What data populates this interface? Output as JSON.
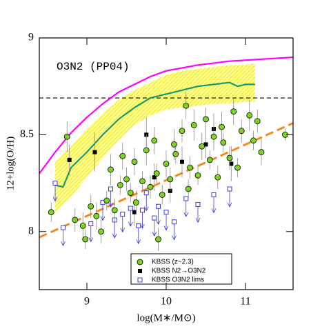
{
  "chart_data": {
    "type": "scatter",
    "annotation": "O3N2 (PP04)",
    "xlabel": "log(M∗/M⊙)",
    "ylabel": "12+log(O/H)",
    "xlim": [
      8.4,
      11.6
    ],
    "ylim": [
      7.7,
      9.0
    ],
    "xticks": [
      9,
      10,
      11
    ],
    "yticks": [
      8,
      8.5,
      9
    ],
    "legend": "lower center",
    "band": {
      "color": "#f5e900",
      "x": [
        8.6,
        8.8,
        9.0,
        9.2,
        9.4,
        9.6,
        9.8,
        10.0,
        10.2,
        10.4,
        10.6,
        10.8,
        11.0,
        11.12
      ],
      "lower": [
        8.1,
        8.18,
        8.28,
        8.38,
        8.47,
        8.55,
        8.6,
        8.63,
        8.64,
        8.65,
        8.66,
        8.66,
        8.67,
        8.67
      ],
      "upper": [
        8.36,
        8.44,
        8.53,
        8.61,
        8.68,
        8.73,
        8.77,
        8.81,
        8.83,
        8.84,
        8.85,
        8.86,
        8.86,
        8.87
      ]
    },
    "hline": {
      "value": 8.69,
      "color": "#000000"
    },
    "lines": [
      {
        "color": "#ff00ff",
        "dash": false,
        "x": [
          8.4,
          8.6,
          8.8,
          9.0,
          9.2,
          9.4,
          9.6,
          9.8,
          10.0,
          10.4,
          10.8,
          11.2,
          11.6
        ],
        "values": [
          8.3,
          8.41,
          8.51,
          8.59,
          8.66,
          8.72,
          8.76,
          8.8,
          8.83,
          8.86,
          8.88,
          8.89,
          8.9
        ]
      },
      {
        "color": "#1a9a6a",
        "dash": false,
        "x": [
          8.6,
          8.7,
          8.8,
          9.0,
          9.2,
          9.4,
          9.6,
          9.8,
          10.0,
          10.2,
          10.4,
          10.6,
          10.8,
          10.9,
          11.0,
          11.12
        ],
        "values": [
          8.24,
          8.23,
          8.33,
          8.41,
          8.5,
          8.58,
          8.64,
          8.69,
          8.71,
          8.73,
          8.75,
          8.76,
          8.77,
          8.75,
          8.76,
          8.76
        ]
      },
      {
        "color": "#f28c1e",
        "dash": true,
        "x": [
          8.4,
          11.6
        ],
        "values": [
          7.97,
          8.56
        ]
      }
    ],
    "series": [
      {
        "name": "KBSS (z~2.3)",
        "color": "#7ed321",
        "marker": "circle",
        "x": [
          8.55,
          8.75,
          8.85,
          8.95,
          8.98,
          9.05,
          9.12,
          9.18,
          9.25,
          9.3,
          9.35,
          9.42,
          9.45,
          9.5,
          9.55,
          9.6,
          9.62,
          9.7,
          9.75,
          9.8,
          9.85,
          9.88,
          9.9,
          9.95,
          10.0,
          10.05,
          10.1,
          10.12,
          10.2,
          10.25,
          10.28,
          10.3,
          10.35,
          10.4,
          10.45,
          10.5,
          10.55,
          10.6,
          10.65,
          10.7,
          10.72,
          10.8,
          10.85,
          10.9,
          10.95,
          11.05,
          11.1,
          11.15,
          11.2,
          11.5
        ],
        "values": [
          8.1,
          8.49,
          8.06,
          8.03,
          7.96,
          8.13,
          8.08,
          8.0,
          8.16,
          8.32,
          8.11,
          8.24,
          8.39,
          8.27,
          8.2,
          8.36,
          8.15,
          8.26,
          8.42,
          8.23,
          8.47,
          8.3,
          7.96,
          8.19,
          8.35,
          8.27,
          8.45,
          8.4,
          8.52,
          8.65,
          8.22,
          8.33,
          8.55,
          8.29,
          8.44,
          8.58,
          8.37,
          8.49,
          8.28,
          8.54,
          8.46,
          8.38,
          8.62,
          8.33,
          8.52,
          8.6,
          8.47,
          8.57,
          8.41,
          8.5
        ],
        "errors": [
          0.05,
          0.08,
          0.06,
          0.07,
          0.05,
          0.06,
          0.07,
          0.06,
          0.05,
          0.08,
          0.06,
          0.05,
          0.07,
          0.06,
          0.05,
          0.07,
          0.06,
          0.05,
          0.08,
          0.06,
          0.07,
          0.05,
          0.06,
          0.05,
          0.07,
          0.06,
          0.08,
          0.05,
          0.06,
          0.07,
          0.05,
          0.06,
          0.08,
          0.05,
          0.07,
          0.06,
          0.05,
          0.07,
          0.06,
          0.08,
          0.05,
          0.06,
          0.07,
          0.05,
          0.06,
          0.08,
          0.05,
          0.06,
          0.07,
          0.03
        ]
      },
      {
        "name": "KBSS N2→O3N2",
        "color": "#000000",
        "marker": "square",
        "x": [
          8.78,
          9.1,
          9.75,
          9.85,
          10.05,
          10.2,
          10.5,
          10.82,
          10.6,
          9.6
        ],
        "values": [
          8.37,
          8.41,
          8.5,
          8.28,
          8.21,
          8.36,
          8.45,
          8.35,
          8.53,
          8.1
        ],
        "errors": [
          0.08,
          0.1,
          0.09,
          0.07,
          0.06,
          0.08,
          0.07,
          0.09,
          0.08,
          0.07
        ]
      },
      {
        "name": "KBSS O3N2 lims",
        "color": "#3a3ad8",
        "marker": "square-open",
        "limit": "upper",
        "x": [
          8.6,
          8.7,
          9.05,
          9.2,
          9.3,
          9.35,
          9.45,
          9.55,
          9.65,
          9.7,
          9.75,
          9.85,
          9.9,
          10.0,
          10.1,
          10.25,
          10.4,
          10.6,
          10.8
        ],
        "values": [
          8.25,
          8.02,
          8.04,
          8.15,
          8.22,
          8.06,
          8.09,
          8.12,
          8.03,
          8.11,
          8.2,
          8.07,
          8.13,
          8.1,
          8.05,
          8.17,
          8.14,
          8.19,
          8.22
        ]
      }
    ]
  }
}
